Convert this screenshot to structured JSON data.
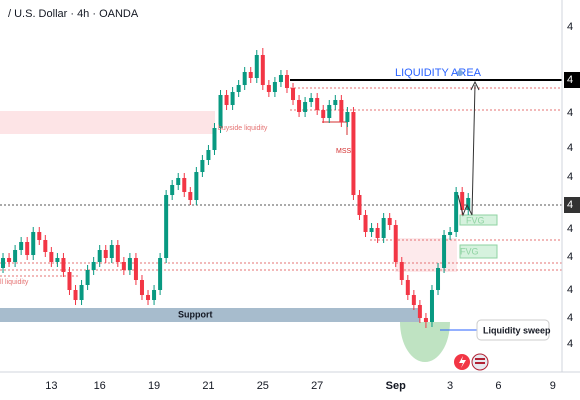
{
  "chart_data": {
    "type": "candlestick",
    "title": "/ U.S. Dollar · 4h · OANDA",
    "up_color": "#089981",
    "down_color": "#f23645",
    "ylim": [
      0,
      372
    ],
    "y_axis_labels": [
      "4",
      "4",
      "4",
      "4",
      "4",
      "4",
      "4",
      "4",
      "4",
      "4",
      "4"
    ],
    "annotations": {
      "liquidity_area": "LIQUIDITY AREA",
      "buyside": "buyside liquidity",
      "mss": "MSS",
      "support": "Support",
      "fvg_upper": "FVG",
      "fvg_lower": "FVG",
      "sweep": "Liquidity sweep",
      "sellside": "ll liquidity"
    },
    "categories": [
      null,
      null,
      null,
      null,
      null,
      null,
      null,
      null,
      "13",
      null,
      null,
      null,
      null,
      null,
      null,
      null,
      "16",
      null,
      null,
      null,
      null,
      null,
      null,
      null,
      null,
      "19",
      null,
      null,
      null,
      null,
      null,
      null,
      null,
      null,
      "21",
      null,
      null,
      null,
      null,
      null,
      null,
      null,
      null,
      "25",
      null,
      null,
      null,
      null,
      null,
      null,
      null,
      null,
      "27",
      null,
      null,
      null,
      null,
      null,
      null,
      null,
      null,
      null,
      null,
      null,
      null,
      "Sep",
      null,
      null,
      null,
      null,
      null,
      null,
      null,
      null,
      "3",
      null,
      null,
      null,
      null,
      null,
      null,
      null,
      "6",
      null,
      null,
      null,
      null,
      null,
      null,
      null,
      null,
      "9",
      null,
      null,
      null,
      null
    ],
    "open": [
      104,
      114,
      110,
      122,
      130,
      117,
      140,
      132,
      120,
      110,
      114,
      100,
      82,
      72,
      87,
      102,
      110,
      122,
      114,
      127,
      110,
      102,
      114,
      92,
      77,
      72,
      82,
      114,
      177,
      187,
      194,
      180,
      172,
      200,
      212,
      222,
      244,
      277,
      267,
      280,
      287,
      300,
      294,
      317,
      287,
      280,
      290,
      297,
      284,
      272,
      260,
      270,
      274,
      262,
      254,
      267,
      272,
      250,
      260,
      177,
      157,
      140,
      144,
      134,
      154,
      147,
      110,
      92,
      77,
      67,
      54,
      50,
      82,
      104,
      137,
      140,
      180,
      162,
      null,
      null,
      null,
      null,
      null,
      null,
      null,
      null,
      null,
      null,
      null,
      null,
      null,
      null,
      null,
      null,
      null,
      null
    ],
    "high": [
      119,
      119,
      127,
      135,
      135,
      145,
      145,
      137,
      125,
      119,
      119,
      105,
      87,
      92,
      107,
      115,
      127,
      127,
      132,
      132,
      115,
      119,
      119,
      97,
      82,
      87,
      119,
      182,
      192,
      199,
      199,
      185,
      205,
      217,
      227,
      249,
      282,
      282,
      285,
      292,
      305,
      305,
      322,
      324,
      292,
      295,
      302,
      302,
      289,
      277,
      275,
      279,
      279,
      267,
      272,
      277,
      277,
      265,
      265,
      182,
      162,
      149,
      149,
      159,
      159,
      152,
      115,
      97,
      82,
      72,
      59,
      87,
      109,
      142,
      145,
      185,
      185,
      179,
      null,
      null,
      null,
      null,
      null,
      null,
      null,
      null,
      null,
      null,
      null,
      null,
      null,
      null,
      null,
      null,
      null,
      null
    ],
    "low": [
      99,
      105,
      105,
      117,
      112,
      112,
      127,
      115,
      105,
      105,
      95,
      77,
      67,
      67,
      82,
      97,
      105,
      109,
      109,
      105,
      97,
      97,
      87,
      72,
      67,
      67,
      77,
      109,
      172,
      182,
      175,
      167,
      167,
      195,
      207,
      217,
      239,
      262,
      262,
      275,
      282,
      289,
      289,
      282,
      275,
      275,
      285,
      279,
      267,
      255,
      255,
      265,
      257,
      249,
      249,
      262,
      245,
      245,
      172,
      152,
      135,
      135,
      129,
      129,
      142,
      105,
      87,
      72,
      62,
      49,
      44,
      45,
      77,
      99,
      132,
      135,
      157,
      157,
      null,
      null,
      null,
      null,
      null,
      null,
      null,
      null,
      null,
      null,
      null,
      null,
      null,
      null,
      null,
      null,
      null,
      null
    ],
    "close": [
      114,
      110,
      122,
      130,
      117,
      140,
      132,
      120,
      110,
      114,
      100,
      82,
      72,
      87,
      102,
      110,
      122,
      114,
      127,
      110,
      102,
      114,
      92,
      77,
      72,
      82,
      114,
      177,
      187,
      194,
      180,
      172,
      200,
      212,
      222,
      244,
      277,
      267,
      280,
      287,
      300,
      294,
      317,
      287,
      280,
      290,
      297,
      284,
      272,
      260,
      270,
      274,
      262,
      254,
      267,
      272,
      250,
      260,
      177,
      157,
      140,
      144,
      134,
      154,
      147,
      110,
      92,
      77,
      67,
      54,
      50,
      82,
      104,
      137,
      140,
      180,
      162,
      174,
      null,
      null,
      null,
      null,
      null,
      null,
      null,
      null,
      null,
      null,
      null,
      null,
      null,
      null,
      null,
      null,
      null,
      null
    ]
  }
}
